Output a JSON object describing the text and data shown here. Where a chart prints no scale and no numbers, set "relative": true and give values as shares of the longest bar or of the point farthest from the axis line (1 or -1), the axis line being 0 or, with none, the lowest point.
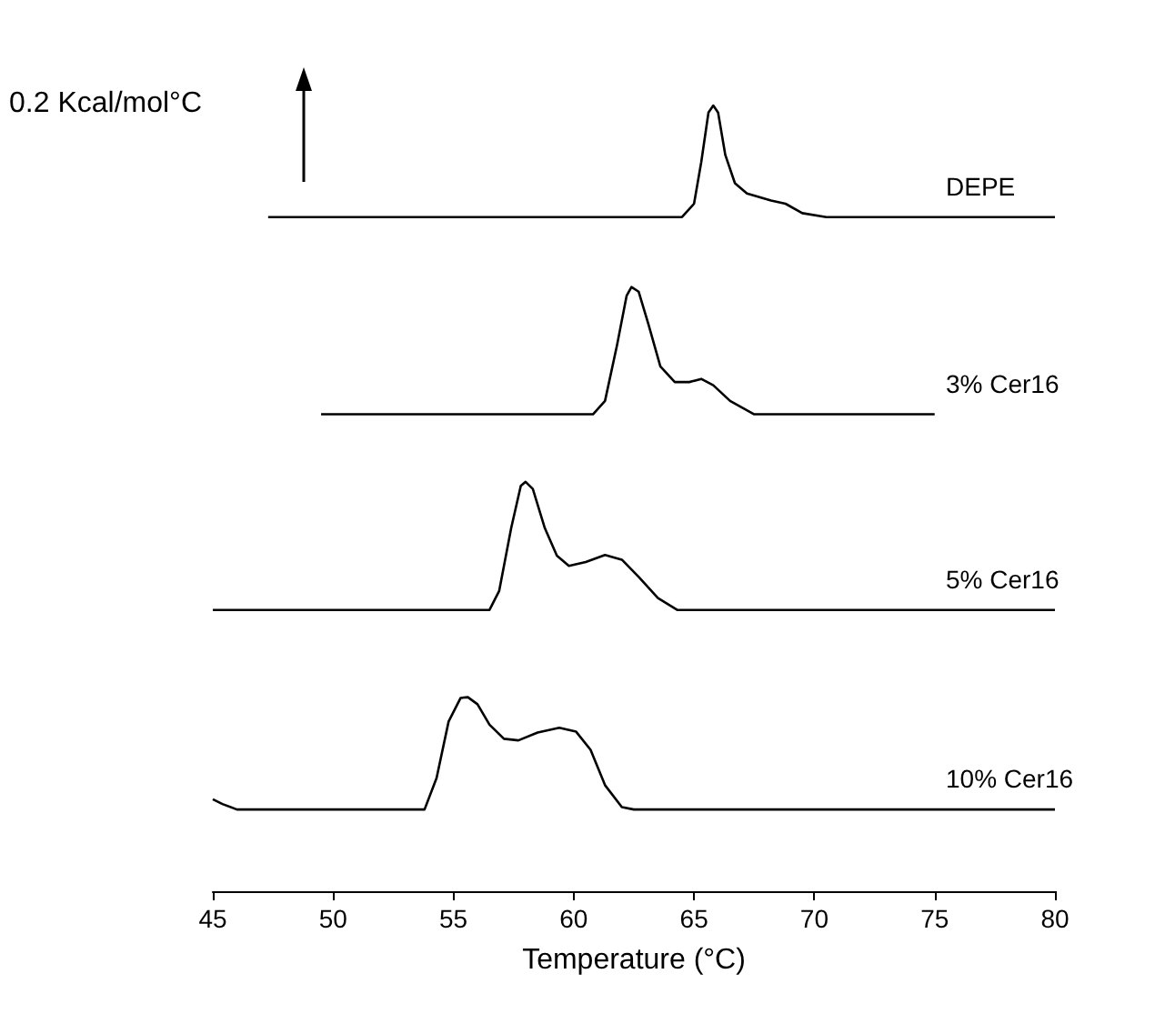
{
  "chart_data": {
    "type": "line",
    "relative": true,
    "xlabel": "Temperature (°C)",
    "xlim": [
      45,
      80
    ],
    "xticks": [
      45,
      50,
      55,
      60,
      65,
      70,
      75,
      80
    ],
    "grid": false,
    "legend": false,
    "marker": "none",
    "line_style": "solid",
    "annotations": [
      "0.2 Kcal/mol°C"
    ],
    "series": [
      {
        "name": "DEPE",
        "color": "#000000",
        "x": [
          47.3,
          50,
          55,
          60,
          64.5,
          65,
          65.3,
          65.6,
          65.8,
          66.0,
          66.3,
          66.7,
          67.2,
          68.2,
          68.8,
          69.5,
          70.5,
          80
        ],
        "values": [
          0.858,
          0.858,
          0.858,
          0.858,
          0.858,
          0.875,
          0.928,
          0.991,
          1.0,
          0.991,
          0.937,
          0.901,
          0.888,
          0.879,
          0.875,
          0.863,
          0.858,
          0.858
        ]
      },
      {
        "name": "3% Cer16",
        "color": "#000000",
        "x": [
          49.5,
          60.8,
          61.3,
          61.8,
          62.2,
          62.4,
          62.7,
          63.1,
          63.6,
          64.2,
          64.8,
          65.3,
          65.8,
          66.5,
          67.5,
          75
        ],
        "values": [
          0.607,
          0.607,
          0.624,
          0.695,
          0.758,
          0.769,
          0.763,
          0.722,
          0.668,
          0.648,
          0.648,
          0.652,
          0.644,
          0.624,
          0.607,
          0.607
        ]
      },
      {
        "name": "5% Cer16",
        "color": "#000000",
        "x": [
          45,
          56.5,
          56.9,
          57.4,
          57.8,
          58.0,
          58.3,
          58.8,
          59.3,
          59.8,
          60.5,
          61.3,
          62,
          62.7,
          63.5,
          64.3,
          80
        ],
        "values": [
          0.358,
          0.358,
          0.382,
          0.462,
          0.516,
          0.521,
          0.512,
          0.462,
          0.427,
          0.414,
          0.419,
          0.428,
          0.422,
          0.4,
          0.373,
          0.358,
          0.358
        ]
      },
      {
        "name": "10% Cer16",
        "color": "#000000",
        "x": [
          45,
          45.4,
          46,
          53.8,
          54.3,
          54.8,
          55.3,
          55.6,
          56.0,
          56.5,
          57.1,
          57.7,
          58.5,
          59.4,
          60.1,
          60.7,
          61.3,
          62.0,
          62.5,
          80
        ],
        "values": [
          0.117,
          0.111,
          0.104,
          0.104,
          0.144,
          0.216,
          0.246,
          0.247,
          0.238,
          0.212,
          0.194,
          0.192,
          0.202,
          0.208,
          0.203,
          0.18,
          0.135,
          0.107,
          0.104,
          0.104
        ]
      }
    ]
  }
}
